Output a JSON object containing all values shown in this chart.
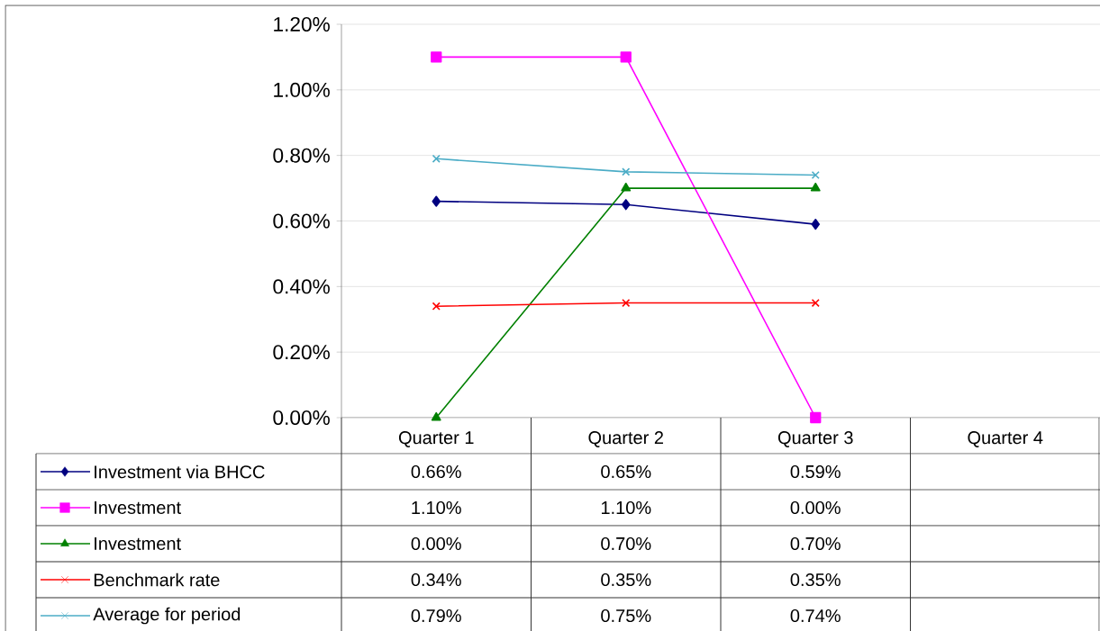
{
  "chart_data": {
    "type": "line",
    "categories": [
      "Quarter 1",
      "Quarter 2",
      "Quarter 3",
      "Quarter 4"
    ],
    "ylim": [
      0,
      1.2
    ],
    "yticks": [
      {
        "value": 0,
        "label": "0.00%"
      },
      {
        "value": 0.2,
        "label": "0.20%"
      },
      {
        "value": 0.4,
        "label": "0.40%"
      },
      {
        "value": 0.6,
        "label": "0.60%"
      },
      {
        "value": 0.8,
        "label": "0.80%"
      },
      {
        "value": 1.0,
        "label": "1.00%"
      },
      {
        "value": 1.2,
        "label": "1.20%"
      }
    ],
    "grid": "y",
    "legend": "bottom left",
    "line_style": "solid",
    "series": [
      {
        "name": "Investment via BHCC",
        "color": "#000080",
        "marker": "diamond",
        "values": [
          0.66,
          0.65,
          0.59,
          null
        ],
        "value_labels": [
          "0.66%",
          "0.65%",
          "0.59%",
          null
        ]
      },
      {
        "name": "Investment",
        "color": "#ff00ff",
        "marker": "square",
        "values": [
          1.1,
          1.1,
          0.0,
          null
        ],
        "value_labels": [
          "1.10%",
          "1.10%",
          "0.00%",
          null
        ]
      },
      {
        "name": "Investment",
        "color": "#008000",
        "marker": "triangle",
        "values": [
          0.0,
          0.7,
          0.7,
          null
        ],
        "value_labels": [
          "0.00%",
          "0.70%",
          "0.70%",
          null
        ]
      },
      {
        "name": "Benchmark rate",
        "color": "#ff0000",
        "marker": "cross",
        "values": [
          0.34,
          0.35,
          0.35,
          null
        ],
        "value_labels": [
          "0.34%",
          "0.35%",
          "0.35%",
          null
        ]
      },
      {
        "name": "Average for period",
        "color": "#4bacc6",
        "marker": "cross",
        "values": [
          0.79,
          0.75,
          0.74,
          null
        ],
        "value_labels": [
          "0.79%",
          "0.75%",
          "0.74%",
          null
        ]
      }
    ]
  }
}
